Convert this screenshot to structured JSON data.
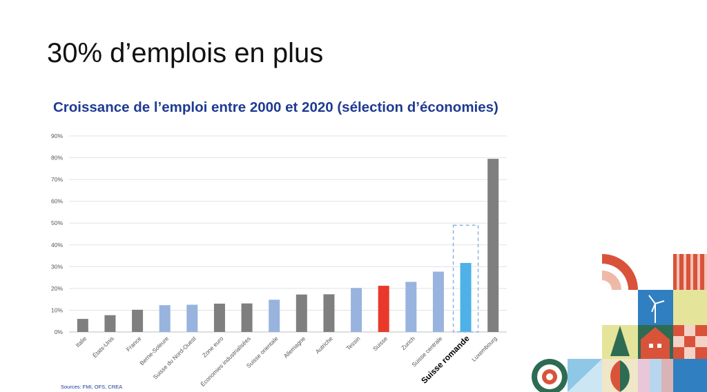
{
  "slide": {
    "title": "30% d’emplois en plus",
    "sources": "Sources: FMI, OFS, CREA"
  },
  "colors": {
    "gray": "#7f7f7f",
    "light_blue": "#98b3de",
    "red": "#e8392b",
    "highlight_blue": "#4eb1e8",
    "title_blue": "#1f3a93"
  },
  "chart_data": {
    "type": "bar",
    "title": "Croissance de l’emploi entre 2000 et 2020 (sélection d’économies)",
    "xlabel": "",
    "ylabel": "",
    "ylim": [
      0,
      90
    ],
    "yticks": [
      "0%",
      "10%",
      "20%",
      "30%",
      "40%",
      "50%",
      "60%",
      "70%",
      "80%",
      "90%"
    ],
    "grid": true,
    "categories": [
      "Italie",
      "États-Unis",
      "France",
      "Berne-Soleure",
      "Suisse du Nord-Ouest",
      "Zone euro",
      "Économies industrialisées",
      "Suisse orientale",
      "Allemagne",
      "Autriche",
      "Tessin",
      "Suisse",
      "Zurich",
      "Suisse centrale",
      "Suisse romande",
      "Luxembourg"
    ],
    "values": [
      6,
      7.7,
      10.2,
      12.3,
      12.5,
      13,
      13.1,
      14.8,
      17.2,
      17.3,
      20.2,
      21.2,
      23,
      27.7,
      31.7,
      79.5
    ],
    "colors": [
      "#7f7f7f",
      "#7f7f7f",
      "#7f7f7f",
      "#98b3de",
      "#98b3de",
      "#7f7f7f",
      "#7f7f7f",
      "#98b3de",
      "#7f7f7f",
      "#7f7f7f",
      "#98b3de",
      "#e8392b",
      "#98b3de",
      "#98b3de",
      "#4eb1e8",
      "#7f7f7f"
    ],
    "highlight": "Suisse romande"
  }
}
